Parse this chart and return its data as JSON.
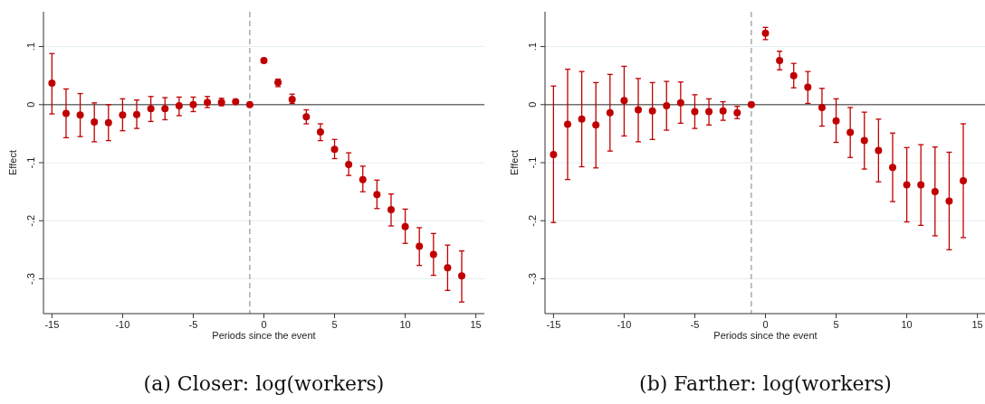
{
  "chart_data": [
    {
      "type": "scatter",
      "title": "(a) Closer: log(workers)",
      "xlabel": "Periods since the event",
      "ylabel": "Effect",
      "marker": "circle",
      "grid": "y",
      "xlim": [
        -15.6,
        15.6
      ],
      "ylim": [
        -0.36,
        0.16
      ],
      "xticks": [
        -15,
        -10,
        -5,
        0,
        5,
        10,
        15
      ],
      "yticks": [
        {
          "value": 0.1,
          "label": ".1"
        },
        0,
        {
          "value": -0.1,
          "label": "-.1"
        },
        {
          "value": -0.2,
          "label": "-.2"
        },
        {
          "value": -0.3,
          "label": "-.3"
        }
      ],
      "x": [
        -15,
        -14,
        -13,
        -12,
        -11,
        -10,
        -9,
        -8,
        -7,
        -6,
        -5,
        -4,
        -3,
        -2,
        -1,
        0,
        1,
        2,
        3,
        4,
        5,
        6,
        7,
        8,
        9,
        10,
        11,
        12,
        13,
        14
      ],
      "ref_lines": [
        {
          "axis": "y",
          "value": 0,
          "color": "#707070",
          "line_style": "solid"
        },
        {
          "axis": "x",
          "value": -1,
          "color": "#a0a0a0",
          "line_style": "dashed"
        }
      ],
      "series": [
        {
          "color": "#c00000",
          "values": [
            0.037,
            -0.015,
            -0.018,
            -0.03,
            -0.031,
            -0.018,
            -0.017,
            -0.007,
            -0.007,
            -0.002,
            0.0,
            0.004,
            0.004,
            0.005,
            0,
            0.076,
            0.038,
            0.009,
            -0.021,
            -0.047,
            -0.077,
            -0.103,
            -0.129,
            -0.155,
            -0.181,
            -0.21,
            -0.244,
            -0.258,
            -0.281,
            -0.295
          ],
          "errors": [
            [
              -0.016,
              0.088
            ],
            [
              -0.057,
              0.027
            ],
            [
              -0.055,
              0.019
            ],
            [
              -0.064,
              0.003
            ],
            [
              -0.062,
              0.0
            ],
            [
              -0.045,
              0.01
            ],
            [
              -0.041,
              0.008
            ],
            [
              -0.029,
              0.014
            ],
            [
              -0.026,
              0.012
            ],
            [
              -0.019,
              0.013
            ],
            [
              -0.012,
              0.013
            ],
            [
              -0.005,
              0.014
            ],
            [
              -0.002,
              0.011
            ],
            [
              0.002,
              0.008
            ],
            null,
            [
              0.073,
              0.079
            ],
            [
              0.031,
              0.044
            ],
            [
              0.002,
              0.018
            ],
            [
              -0.033,
              -0.009
            ],
            [
              -0.062,
              -0.033
            ],
            [
              -0.093,
              -0.06
            ],
            [
              -0.122,
              -0.083
            ],
            [
              -0.15,
              -0.106
            ],
            [
              -0.179,
              -0.13
            ],
            [
              -0.209,
              -0.154
            ],
            [
              -0.239,
              -0.18
            ],
            [
              -0.277,
              -0.212
            ],
            [
              -0.294,
              -0.222
            ],
            [
              -0.32,
              -0.242
            ],
            [
              -0.34,
              -0.252
            ]
          ]
        }
      ]
    },
    {
      "type": "scatter",
      "title": "(b) Farther: log(workers)",
      "xlabel": "Periods since the event",
      "ylabel": "Effect",
      "marker": "circle",
      "grid": "y",
      "xlim": [
        -15.6,
        15.6
      ],
      "ylim": [
        -0.36,
        0.16
      ],
      "xticks": [
        -15,
        -10,
        -5,
        0,
        5,
        10,
        15
      ],
      "yticks": [
        {
          "value": 0.1,
          "label": ".1"
        },
        0,
        {
          "value": -0.1,
          "label": "-.1"
        },
        {
          "value": -0.2,
          "label": "-.2"
        },
        {
          "value": -0.3,
          "label": "-.3"
        }
      ],
      "x": [
        -15,
        -14,
        -13,
        -12,
        -11,
        -10,
        -9,
        -8,
        -7,
        -6,
        -5,
        -4,
        -3,
        -2,
        -1,
        0,
        1,
        2,
        3,
        4,
        5,
        6,
        7,
        8,
        9,
        10,
        11,
        12,
        13,
        14
      ],
      "ref_lines": [
        {
          "axis": "y",
          "value": 0,
          "color": "#707070",
          "line_style": "solid"
        },
        {
          "axis": "x",
          "value": -1,
          "color": "#a0a0a0",
          "line_style": "dashed"
        }
      ],
      "series": [
        {
          "color": "#c00000",
          "values": [
            -0.086,
            -0.034,
            -0.025,
            -0.035,
            -0.014,
            0.007,
            -0.009,
            -0.011,
            -0.002,
            0.003,
            -0.012,
            -0.012,
            -0.011,
            -0.014,
            0,
            0.123,
            0.076,
            0.05,
            0.03,
            -0.005,
            -0.028,
            -0.048,
            -0.062,
            -0.079,
            -0.108,
            -0.138,
            -0.138,
            -0.15,
            -0.166,
            -0.131
          ],
          "errors": [
            [
              -0.203,
              0.032
            ],
            [
              -0.129,
              0.061
            ],
            [
              -0.107,
              0.057
            ],
            [
              -0.109,
              0.038
            ],
            [
              -0.08,
              0.052
            ],
            [
              -0.054,
              0.066
            ],
            [
              -0.064,
              0.045
            ],
            [
              -0.06,
              0.038
            ],
            [
              -0.044,
              0.04
            ],
            [
              -0.032,
              0.039
            ],
            [
              -0.041,
              0.017
            ],
            [
              -0.035,
              0.01
            ],
            [
              -0.027,
              0.005
            ],
            [
              -0.024,
              -0.003
            ],
            null,
            [
              0.112,
              0.133
            ],
            [
              0.06,
              0.092
            ],
            [
              0.029,
              0.071
            ],
            [
              0.002,
              0.057
            ],
            [
              -0.037,
              0.028
            ],
            [
              -0.065,
              0.01
            ],
            [
              -0.091,
              -0.005
            ],
            [
              -0.111,
              -0.013
            ],
            [
              -0.133,
              -0.025
            ],
            [
              -0.167,
              -0.049
            ],
            [
              -0.202,
              -0.074
            ],
            [
              -0.208,
              -0.069
            ],
            [
              -0.226,
              -0.073
            ],
            [
              -0.25,
              -0.082
            ],
            [
              -0.229,
              -0.033
            ]
          ]
        }
      ]
    }
  ]
}
